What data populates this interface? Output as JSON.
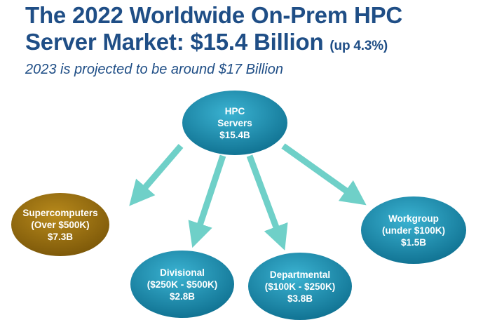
{
  "title": {
    "line1": "The 2022 Worldwide On-Prem HPC",
    "line2": "Server Market: $15.4 Billion",
    "note": "(up 4.3%)"
  },
  "subtitle": "2023 is projected to be around $17 Billion",
  "colors": {
    "title": "#1f4e86",
    "node": "#1a8fb0",
    "supercomputer": "#9a6f0c",
    "arrow": "#6fd0c8"
  },
  "root": {
    "lines": [
      "HPC",
      "Servers",
      "$15.4B"
    ]
  },
  "nodes": [
    {
      "lines": [
        "Supercomputers",
        "(Over $500K)",
        "$7.3B"
      ]
    },
    {
      "lines": [
        "Divisional",
        "($250K - $500K)",
        "$2.8B"
      ]
    },
    {
      "lines": [
        "Departmental",
        "($100K - $250K)",
        "$3.8B"
      ]
    },
    {
      "lines": [
        "Workgroup",
        "(under $100K)",
        "$1.5B"
      ]
    }
  ]
}
